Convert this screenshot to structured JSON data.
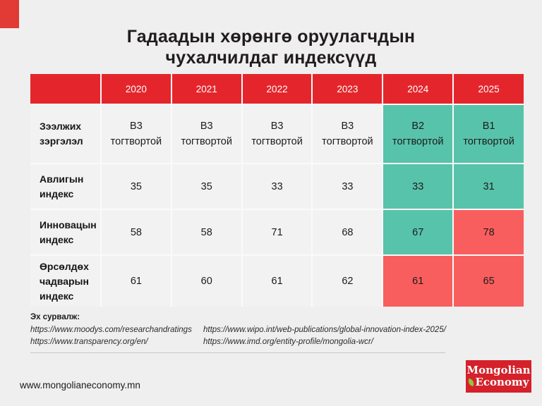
{
  "title": {
    "line1": "Гадаадын хөрөнгө оруулагчдын",
    "line2": "чухалчилдаг индексүүд"
  },
  "colors": {
    "header_red": "#e4262c",
    "corner_red": "#e23a34",
    "logo_red": "#d4212a",
    "highlight_good_teal": "#58c3ab",
    "highlight_bad_red": "#f95e5e",
    "cell_gray": "#f2f2f3"
  },
  "table": {
    "years": [
      "2020",
      "2021",
      "2022",
      "2023",
      "2024",
      "2025"
    ],
    "rows": [
      {
        "label": "Зээлжих зэргэлэл",
        "cells": [
          {
            "value": "B3",
            "sub": "тогтвортой",
            "state": "normal"
          },
          {
            "value": "B3",
            "sub": "тогтвортой",
            "state": "normal"
          },
          {
            "value": "B3",
            "sub": "тогтвортой",
            "state": "normal"
          },
          {
            "value": "B3",
            "sub": "тогтвортой",
            "state": "normal"
          },
          {
            "value": "B2",
            "sub": "тогтвортой",
            "state": "good"
          },
          {
            "value": "B1",
            "sub": "тогтвортой",
            "state": "good"
          }
        ]
      },
      {
        "label": "Авлигын индекс",
        "cells": [
          {
            "value": "35",
            "state": "normal"
          },
          {
            "value": "35",
            "state": "normal"
          },
          {
            "value": "33",
            "state": "normal"
          },
          {
            "value": "33",
            "state": "normal"
          },
          {
            "value": "33",
            "state": "good"
          },
          {
            "value": "31",
            "state": "good"
          }
        ]
      },
      {
        "label": "Инновацын индекс",
        "cells": [
          {
            "value": "58",
            "state": "normal"
          },
          {
            "value": "58",
            "state": "normal"
          },
          {
            "value": "71",
            "state": "normal"
          },
          {
            "value": "68",
            "state": "normal"
          },
          {
            "value": "67",
            "state": "good"
          },
          {
            "value": "78",
            "state": "bad"
          }
        ]
      },
      {
        "label": "Өрсөлдөх чадварын индекс",
        "cells": [
          {
            "value": "61",
            "state": "normal"
          },
          {
            "value": "60",
            "state": "normal"
          },
          {
            "value": "61",
            "state": "normal"
          },
          {
            "value": "62",
            "state": "normal"
          },
          {
            "value": "61",
            "state": "bad"
          },
          {
            "value": "65",
            "state": "bad"
          }
        ]
      }
    ]
  },
  "sources": {
    "label": "Эх сурвалж:",
    "left": [
      "https://www.moodys.com/researchandratings",
      "https://www.transparency.org/en/"
    ],
    "right": [
      "https://www.wipo.int/web-publications/global-innovation-index-2025/",
      "https://www.imd.org/entity-profile/mongolia-wcr/"
    ]
  },
  "footer": {
    "website": "www.mongolianeconomy.mn",
    "logo": {
      "line1": "Mongolian",
      "line2": "Economy",
      "icon": "leaf-icon"
    }
  },
  "chart_data": {
    "type": "table",
    "title": "Гадаадын хөрөнгө оруулагчдын чухалчилдаг индексүүд",
    "columns": [
      "",
      "2020",
      "2021",
      "2022",
      "2023",
      "2024",
      "2025"
    ],
    "rows": [
      [
        "Зээлжих зэргэлэл",
        "B3 тогтвортой",
        "B3 тогтвортой",
        "B3 тогтвортой",
        "B3 тогтвортой",
        "B2 тогтвортой",
        "B1 тогтвортой"
      ],
      [
        "Авлигын индекс",
        35,
        35,
        33,
        33,
        33,
        31
      ],
      [
        "Инновацын индекс",
        58,
        58,
        71,
        68,
        67,
        78
      ],
      [
        "Өрсөлдөх чадварын индекс",
        61,
        60,
        61,
        62,
        61,
        65
      ]
    ],
    "highlighted_teal_cells": [
      [
        "Зээлжих зэргэлэл",
        2024
      ],
      [
        "Зээлжих зэргэлэл",
        2025
      ],
      [
        "Авлигын индекс",
        2024
      ],
      [
        "Авлигын индекс",
        2025
      ],
      [
        "Инновацын индекс",
        2024
      ]
    ],
    "highlighted_red_cells": [
      [
        "Инновацын индекс",
        2025
      ],
      [
        "Өрсөлдөх чадварын индекс",
        2024
      ],
      [
        "Өрсөлдөх чадварын индекс",
        2025
      ]
    ]
  }
}
